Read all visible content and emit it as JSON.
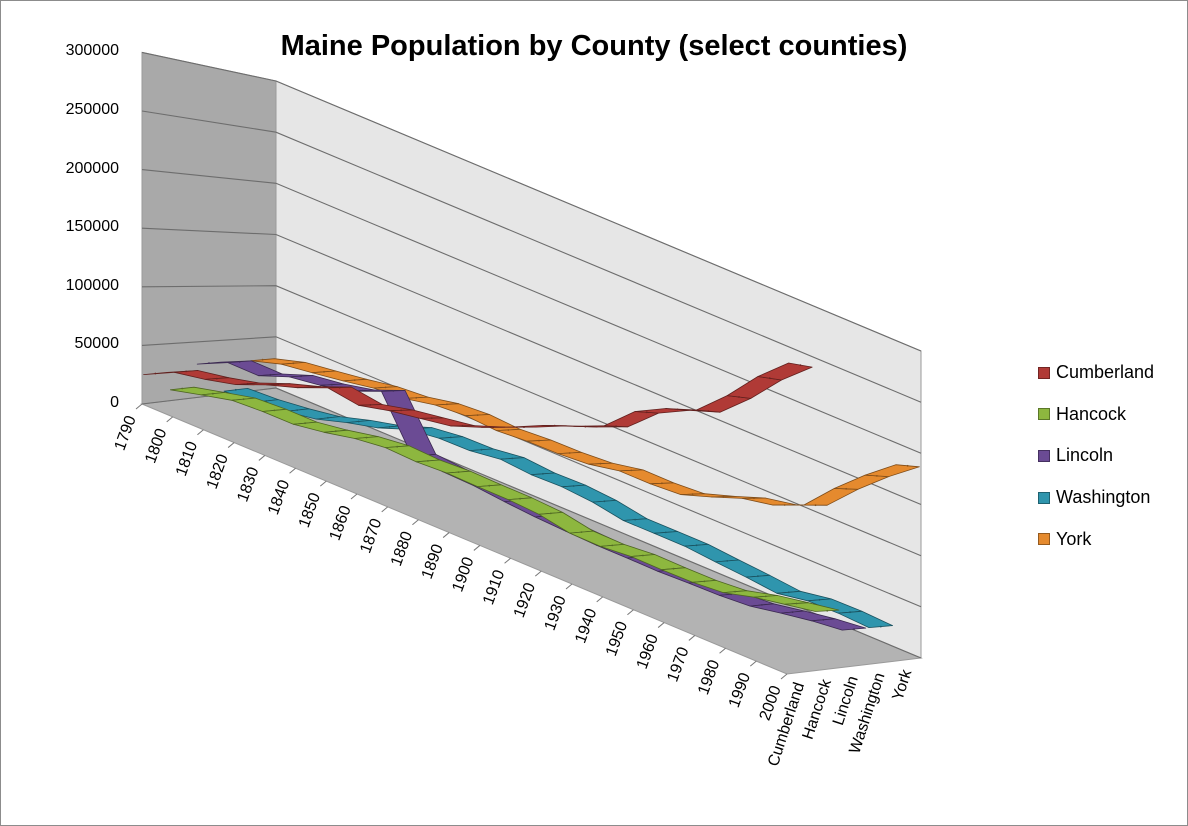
{
  "chart_data": {
    "type": "line",
    "subtype": "3d-line",
    "title": "Maine Population by County (select counties)",
    "xlabel": "",
    "ylabel": "",
    "ylim": [
      0,
      300000
    ],
    "yticks": [
      "300000",
      "250000",
      "200000",
      "150000",
      "100000",
      "50000",
      "0"
    ],
    "categories": [
      "1790",
      "1800",
      "1810",
      "1820",
      "1830",
      "1840",
      "1850",
      "1860",
      "1870",
      "1880",
      "1890",
      "1900",
      "1910",
      "1920",
      "1930",
      "1940",
      "1950",
      "1960",
      "1970",
      "1980",
      "1990",
      "2000"
    ],
    "series_axis": [
      "Cumberland",
      "Hancock",
      "Lincoln",
      "Washington",
      "York"
    ],
    "series": [
      {
        "name": "Cumberland",
        "color": "#b03a36",
        "values": [
          25000,
          37900,
          42800,
          49400,
          60100,
          68700,
          79500,
          75600,
          82000,
          86400,
          90900,
          100700,
          112000,
          124400,
          134600,
          146000,
          169200,
          182800,
          192500,
          215800,
          243100,
          265600
        ]
      },
      {
        "name": "Hancock",
        "color": "#8db73f",
        "values": [
          9500,
          16300,
          22800,
          24300,
          24300,
          28600,
          34400,
          37700,
          36500,
          38000,
          37300,
          37200,
          35600,
          30400,
          30000,
          32400,
          32100,
          32300,
          34600,
          41800,
          46900,
          51800
        ]
      },
      {
        "name": "Lincoln",
        "color": "#6b4b94",
        "values": [
          30000,
          42900,
          42700,
          53200,
          57200,
          63500,
          74900,
          27900,
          25600,
          24800,
          21900,
          19700,
          18400,
          17300,
          17400,
          17000,
          18000,
          18500,
          20500,
          25700,
          30400,
          33600
        ]
      },
      {
        "name": "Washington",
        "color": "#2f95ad",
        "values": [
          2800,
          4400,
          7900,
          12700,
          21300,
          28300,
          38800,
          42500,
          43000,
          46900,
          44500,
          45200,
          42900,
          37800,
          37800,
          37800,
          35200,
          32900,
          29900,
          34900,
          35300,
          33900
        ]
      },
      {
        "name": "York",
        "color": "#e58a2e",
        "values": [
          28800,
          37700,
          41900,
          46300,
          51700,
          54000,
          60100,
          62100,
          60200,
          62300,
          62800,
          64900,
          70800,
          70700,
          72700,
          82600,
          93500,
          99400,
          111600,
          139700,
          164600,
          186700
        ]
      }
    ],
    "grid": true,
    "legend": "right",
    "floor_color": "#b3b3b3",
    "wall_color": "#e6e6e6",
    "side_wall_color": "#a9a9a9"
  }
}
